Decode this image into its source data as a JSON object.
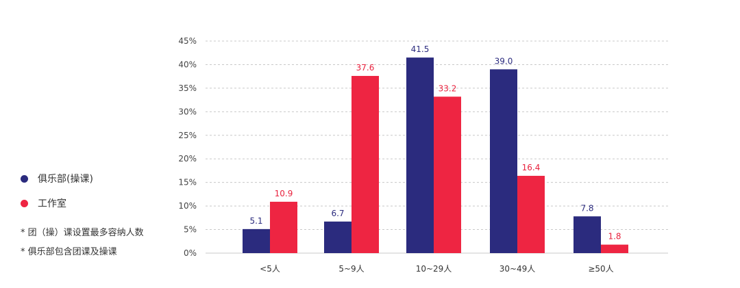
{
  "chart_data": {
    "type": "bar",
    "categories": [
      "<5人",
      "5~9人",
      "10~29人",
      "30~49人",
      "≥50人"
    ],
    "series": [
      {
        "name": "俱乐部(操课)",
        "values": [
          5.1,
          6.7,
          41.5,
          39.0,
          7.8
        ],
        "color": "#2b2b7e",
        "label_color": "#2b2b7e"
      },
      {
        "name": "工作室",
        "values": [
          10.9,
          37.6,
          33.2,
          16.4,
          1.8
        ],
        "color": "#ee2542",
        "label_color": "#e8213d"
      }
    ],
    "value_labels": [
      [
        "5.1",
        "6.7",
        "41.5",
        "39.0",
        "7.8"
      ],
      [
        "10.9",
        "37.6",
        "33.2",
        "16.4",
        "1.8"
      ]
    ],
    "y_ticks": [
      "0%",
      "5%",
      "10%",
      "15%",
      "20%",
      "25%",
      "30%",
      "35%",
      "40%",
      "45%"
    ],
    "ylim": [
      0,
      45
    ],
    "grid": true,
    "legend_position": "left",
    "title": "",
    "xlabel": "",
    "ylabel": ""
  },
  "notes": [
    "* 团（操）课设置最多容纳人数",
    "* 俱乐部包含团课及操课"
  ]
}
